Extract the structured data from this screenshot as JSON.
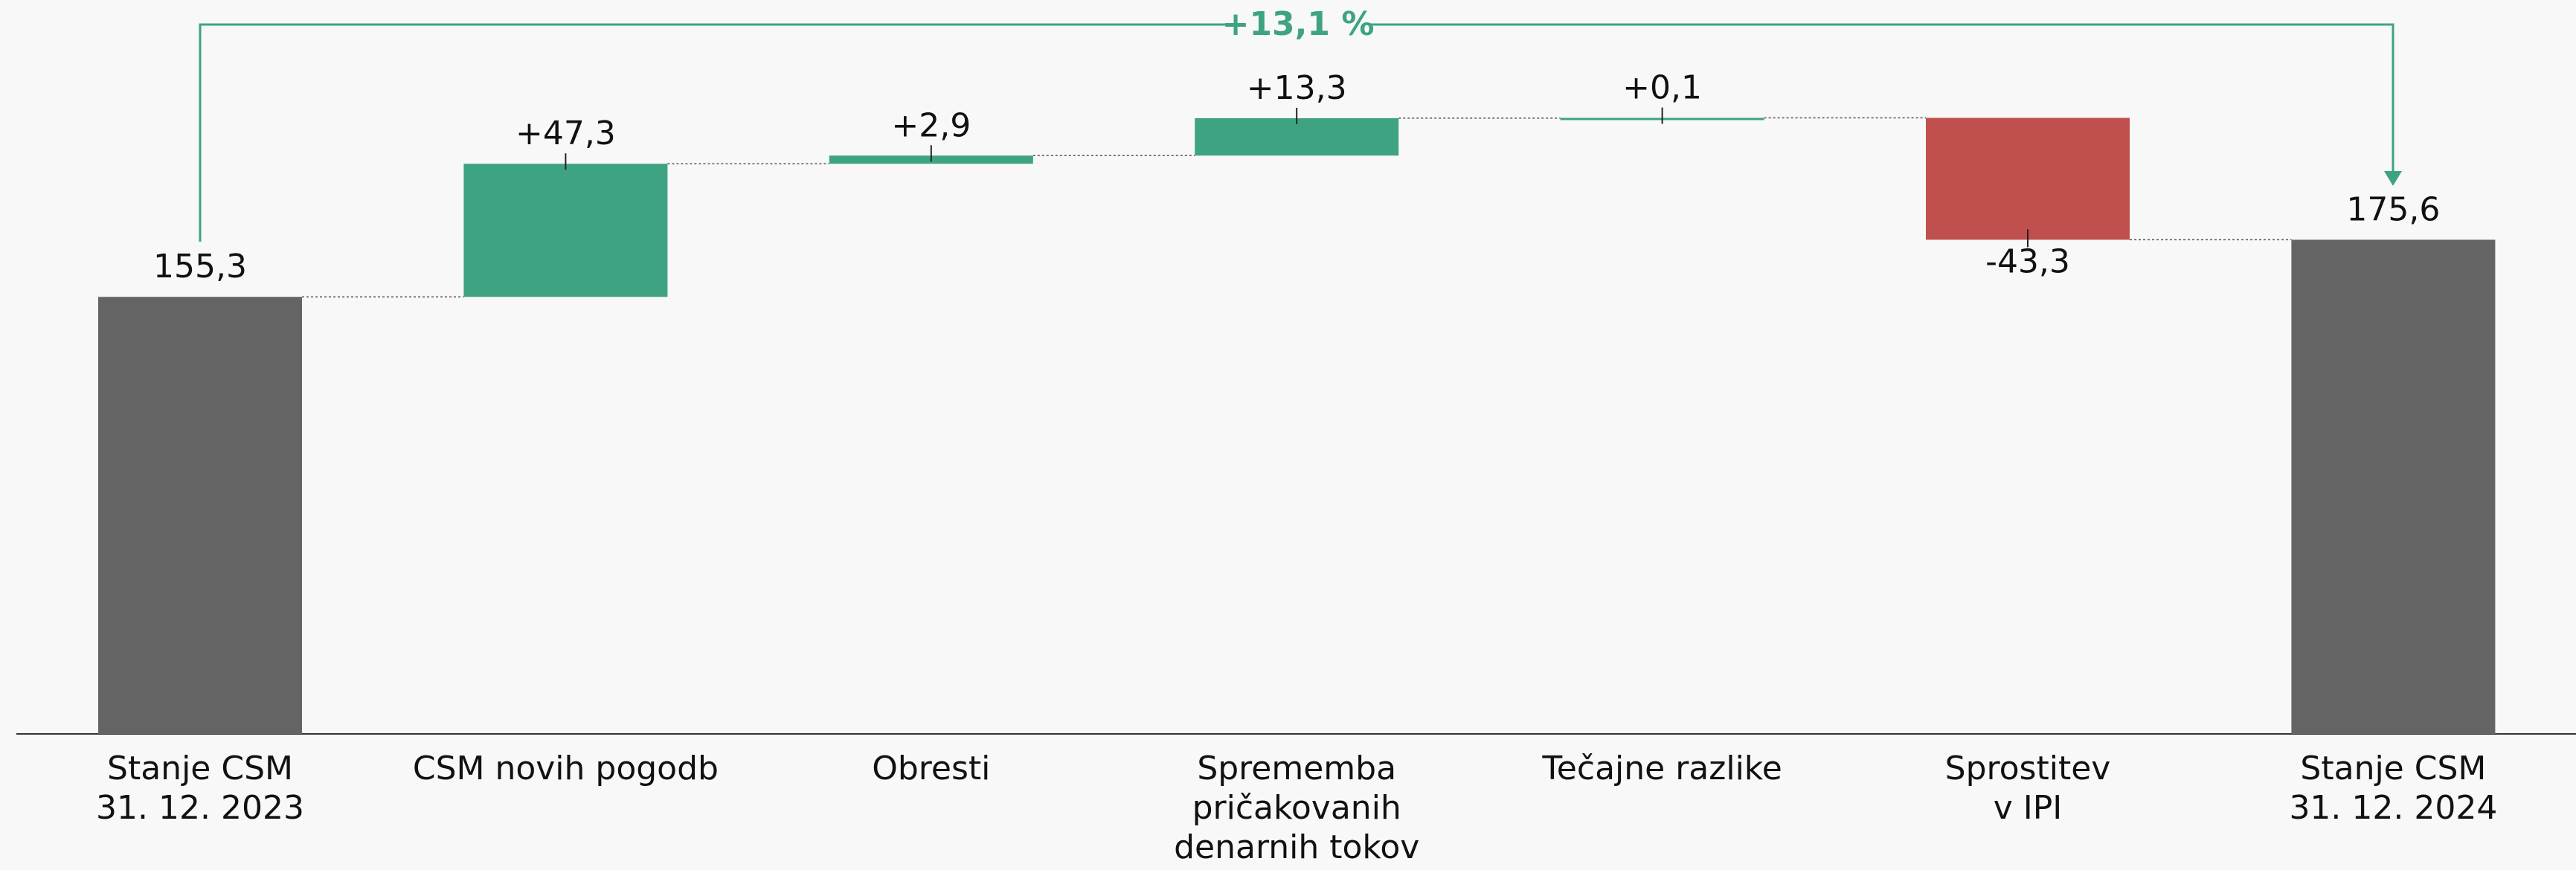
{
  "chart_data": {
    "type": "waterfall",
    "categories": [
      [
        "Stanje CSM",
        "31. 12. 2023"
      ],
      [
        "CSM novih pogodb"
      ],
      [
        "Obresti"
      ],
      [
        "Sprememba",
        "pričakovanih",
        "denarnih tokov"
      ],
      [
        "Tečajne razlike"
      ],
      [
        "Sprostitev",
        "v IPI"
      ],
      [
        "Stanje CSM",
        "31. 12. 2024"
      ]
    ],
    "measure": [
      "total",
      "relative",
      "relative",
      "relative",
      "relative",
      "relative",
      "total"
    ],
    "values": [
      155.3,
      47.3,
      2.9,
      13.3,
      0.1,
      -43.3,
      175.6
    ],
    "value_labels": [
      "155,3",
      "+47,3",
      "+2,9",
      "+13,3",
      "+0,1",
      "-43,3",
      "175,6"
    ],
    "total_color": "#646464",
    "increase_color": "#3ea383",
    "decrease_color": "#c0504d",
    "ylim": [
      0,
      260
    ],
    "annotation": "+13,1 %"
  }
}
